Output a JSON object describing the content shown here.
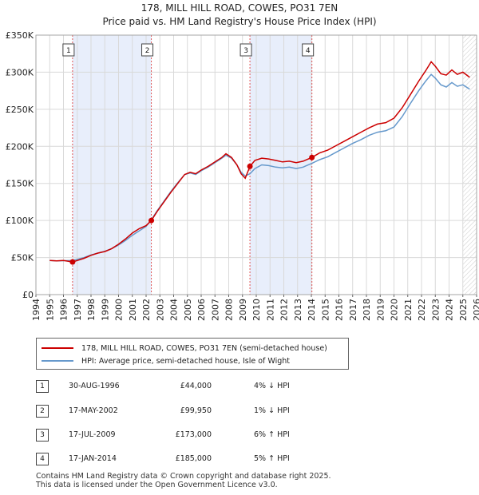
{
  "chart_data": {
    "type": "line",
    "title": "178, MILL HILL ROAD, COWES, PO31 7EN",
    "subtitle": "Price paid vs. HM Land Registry's House Price Index (HPI)",
    "xlim": [
      1994,
      2026
    ],
    "ylim": [
      0,
      350000
    ],
    "x_ticks": [
      "1994",
      "1995",
      "1996",
      "1997",
      "1998",
      "1999",
      "2000",
      "2001",
      "2002",
      "2003",
      "2004",
      "2005",
      "2006",
      "2007",
      "2008",
      "2009",
      "2010",
      "2011",
      "2012",
      "2013",
      "2014",
      "2015",
      "2016",
      "2017",
      "2018",
      "2019",
      "2020",
      "2021",
      "2022",
      "2023",
      "2024",
      "2025",
      "2026"
    ],
    "y_ticks": [
      {
        "value": 0,
        "label": "£0"
      },
      {
        "value": 50000,
        "label": "£50K"
      },
      {
        "value": 100000,
        "label": "£100K"
      },
      {
        "value": 150000,
        "label": "£150K"
      },
      {
        "value": 200000,
        "label": "£200K"
      },
      {
        "value": 250000,
        "label": "£250K"
      },
      {
        "value": 300000,
        "label": "£300K"
      },
      {
        "value": 350000,
        "label": "£350K"
      }
    ],
    "shaded_ranges": [
      [
        1996.66,
        2002.38
      ],
      [
        2009.54,
        2014.04
      ]
    ],
    "projection_start": 2025.0,
    "colors": {
      "property": "#cc0000",
      "hpi": "#6699cc",
      "shade": "#e8eefb",
      "vline": "#e05555"
    },
    "series": [
      {
        "name": "178, MILL HILL ROAD, COWES, PO31 7EN (semi-detached house)",
        "points": [
          [
            1995.0,
            46000
          ],
          [
            1995.5,
            45500
          ],
          [
            1996.0,
            46000
          ],
          [
            1996.66,
            44000
          ],
          [
            1997.0,
            46000
          ],
          [
            1997.5,
            49000
          ],
          [
            1998.0,
            53000
          ],
          [
            1998.5,
            56000
          ],
          [
            1999.0,
            58000
          ],
          [
            1999.5,
            62000
          ],
          [
            2000.0,
            68000
          ],
          [
            2000.5,
            75000
          ],
          [
            2001.0,
            83000
          ],
          [
            2001.5,
            89000
          ],
          [
            2002.0,
            93000
          ],
          [
            2002.38,
            99950
          ],
          [
            2002.8,
            112000
          ],
          [
            2003.3,
            125000
          ],
          [
            2003.8,
            138000
          ],
          [
            2004.3,
            150000
          ],
          [
            2004.8,
            162000
          ],
          [
            2005.2,
            165000
          ],
          [
            2005.6,
            163000
          ],
          [
            2006.0,
            168000
          ],
          [
            2006.5,
            173000
          ],
          [
            2007.0,
            179000
          ],
          [
            2007.5,
            185000
          ],
          [
            2007.8,
            190000
          ],
          [
            2008.2,
            185000
          ],
          [
            2008.6,
            175000
          ],
          [
            2008.9,
            163000
          ],
          [
            2009.2,
            157000
          ],
          [
            2009.54,
            173000
          ],
          [
            2009.9,
            181000
          ],
          [
            2010.4,
            184000
          ],
          [
            2010.9,
            183000
          ],
          [
            2011.4,
            181000
          ],
          [
            2011.9,
            179000
          ],
          [
            2012.4,
            180000
          ],
          [
            2012.9,
            178000
          ],
          [
            2013.4,
            180000
          ],
          [
            2014.04,
            185000
          ],
          [
            2014.6,
            191000
          ],
          [
            2015.2,
            195000
          ],
          [
            2015.8,
            201000
          ],
          [
            2016.4,
            207000
          ],
          [
            2017.0,
            213000
          ],
          [
            2017.6,
            219000
          ],
          [
            2018.2,
            225000
          ],
          [
            2018.8,
            230000
          ],
          [
            2019.4,
            232000
          ],
          [
            2020.0,
            238000
          ],
          [
            2020.6,
            252000
          ],
          [
            2021.2,
            270000
          ],
          [
            2021.8,
            288000
          ],
          [
            2022.3,
            302000
          ],
          [
            2022.7,
            314000
          ],
          [
            2023.0,
            308000
          ],
          [
            2023.4,
            298000
          ],
          [
            2023.8,
            296000
          ],
          [
            2024.2,
            303000
          ],
          [
            2024.6,
            297000
          ],
          [
            2025.0,
            300000
          ],
          [
            2025.5,
            293000
          ]
        ]
      },
      {
        "name": "HPI: Average price, semi-detached house, Isle of Wight",
        "points": [
          [
            1995.0,
            46000
          ],
          [
            1995.5,
            45500
          ],
          [
            1996.0,
            45800
          ],
          [
            1996.66,
            46000
          ],
          [
            1997.0,
            47500
          ],
          [
            1997.5,
            50000
          ],
          [
            1998.0,
            53500
          ],
          [
            1998.5,
            56000
          ],
          [
            1999.0,
            58500
          ],
          [
            1999.5,
            62000
          ],
          [
            2000.0,
            67000
          ],
          [
            2000.5,
            73000
          ],
          [
            2001.0,
            80000
          ],
          [
            2001.5,
            86000
          ],
          [
            2002.0,
            92000
          ],
          [
            2002.38,
            101000
          ],
          [
            2002.8,
            113000
          ],
          [
            2003.3,
            126000
          ],
          [
            2003.8,
            139000
          ],
          [
            2004.3,
            151000
          ],
          [
            2004.8,
            162000
          ],
          [
            2005.2,
            164000
          ],
          [
            2005.6,
            162000
          ],
          [
            2006.0,
            167000
          ],
          [
            2006.5,
            172000
          ],
          [
            2007.0,
            178000
          ],
          [
            2007.5,
            184000
          ],
          [
            2007.8,
            188000
          ],
          [
            2008.2,
            184000
          ],
          [
            2008.6,
            175000
          ],
          [
            2008.9,
            165000
          ],
          [
            2009.2,
            160000
          ],
          [
            2009.54,
            163000
          ],
          [
            2009.9,
            170000
          ],
          [
            2010.4,
            175000
          ],
          [
            2010.9,
            174000
          ],
          [
            2011.4,
            172000
          ],
          [
            2011.9,
            171000
          ],
          [
            2012.4,
            172000
          ],
          [
            2012.9,
            170000
          ],
          [
            2013.4,
            172000
          ],
          [
            2014.04,
            177000
          ],
          [
            2014.6,
            182000
          ],
          [
            2015.2,
            186000
          ],
          [
            2015.8,
            192000
          ],
          [
            2016.4,
            198000
          ],
          [
            2017.0,
            204000
          ],
          [
            2017.6,
            209000
          ],
          [
            2018.2,
            215000
          ],
          [
            2018.8,
            219000
          ],
          [
            2019.4,
            221000
          ],
          [
            2020.0,
            226000
          ],
          [
            2020.6,
            240000
          ],
          [
            2021.2,
            258000
          ],
          [
            2021.8,
            275000
          ],
          [
            2022.3,
            288000
          ],
          [
            2022.7,
            297000
          ],
          [
            2023.0,
            292000
          ],
          [
            2023.4,
            283000
          ],
          [
            2023.8,
            280000
          ],
          [
            2024.2,
            286000
          ],
          [
            2024.6,
            281000
          ],
          [
            2025.0,
            283000
          ],
          [
            2025.5,
            277000
          ]
        ]
      }
    ],
    "sales": [
      {
        "n": "1",
        "x": 1996.66,
        "y": 44000
      },
      {
        "n": "2",
        "x": 2002.38,
        "y": 99950
      },
      {
        "n": "3",
        "x": 2009.54,
        "y": 173000
      },
      {
        "n": "4",
        "x": 2014.04,
        "y": 185000
      }
    ]
  },
  "legend": {
    "property_label": "178, MILL HILL ROAD, COWES, PO31 7EN (semi-detached house)",
    "hpi_label": "HPI: Average price, semi-detached house, Isle of Wight"
  },
  "table": [
    {
      "n": "1",
      "date": "30-AUG-1996",
      "price": "£44,000",
      "pct": "4% ↓ HPI"
    },
    {
      "n": "2",
      "date": "17-MAY-2002",
      "price": "£99,950",
      "pct": "1% ↓ HPI"
    },
    {
      "n": "3",
      "date": "17-JUL-2009",
      "price": "£173,000",
      "pct": "6% ↑ HPI"
    },
    {
      "n": "4",
      "date": "17-JAN-2014",
      "price": "£185,000",
      "pct": "5% ↑ HPI"
    }
  ],
  "footer": {
    "line1": "Contains HM Land Registry data © Crown copyright and database right 2025.",
    "line2": "This data is licensed under the Open Government Licence v3.0."
  }
}
